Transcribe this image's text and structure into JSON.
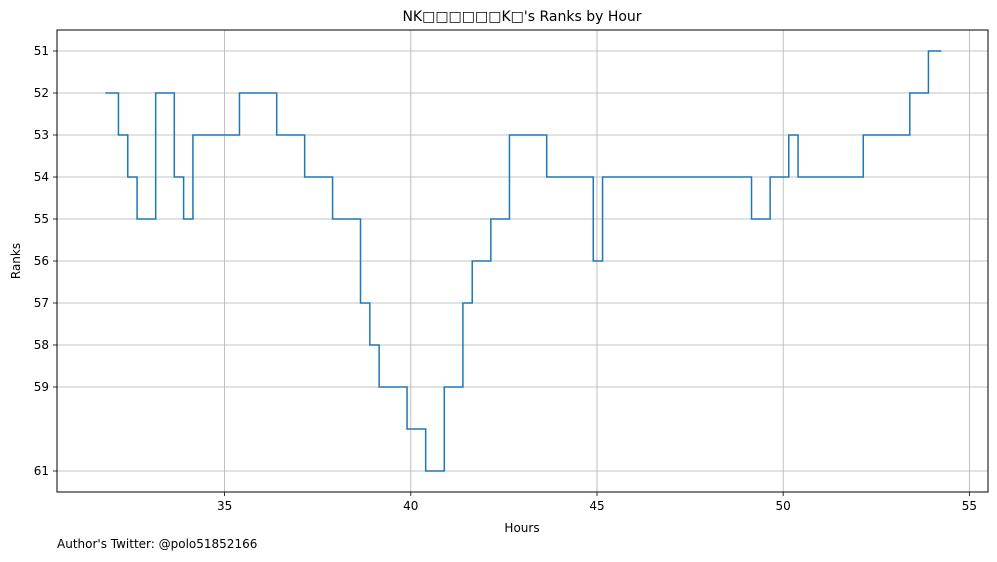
{
  "chart_data": {
    "type": "line",
    "step": true,
    "title": "NK□□□□□□K□'s Ranks by Hour",
    "xlabel": "Hours",
    "ylabel": "Ranks",
    "xlim": [
      30.5,
      55.5
    ],
    "ylim": [
      61.5,
      50.5
    ],
    "y_inverted": true,
    "x_ticks": [
      35,
      40,
      45,
      50,
      55
    ],
    "y_ticks": [
      51,
      52,
      53,
      54,
      55,
      56,
      57,
      58,
      59,
      61
    ],
    "grid": true,
    "line_color": "#1f77b4",
    "series": [
      {
        "x": [
          31.8,
          32.15,
          32.4,
          32.65,
          33.15,
          33.65,
          33.9,
          34.15,
          34.65,
          35.4,
          36.4,
          37.15,
          37.9,
          38.65,
          38.9,
          39.15,
          39.9,
          40.4,
          40.9,
          41.4,
          41.65,
          42.15,
          42.65,
          43.65,
          44.9,
          45.15,
          49.15,
          49.65,
          50.15,
          50.4,
          52.15,
          53.4,
          53.9,
          54.25
        ],
        "y": [
          52,
          53,
          54,
          55,
          52,
          54,
          55,
          53,
          53,
          52,
          53,
          54,
          55,
          57,
          58,
          59,
          60,
          61,
          59,
          57,
          56,
          55,
          53,
          54,
          56,
          54,
          55,
          54,
          53,
          54,
          53,
          52,
          51,
          51
        ]
      }
    ]
  },
  "footer": {
    "text": "Author's Twitter: @polo51852166"
  }
}
